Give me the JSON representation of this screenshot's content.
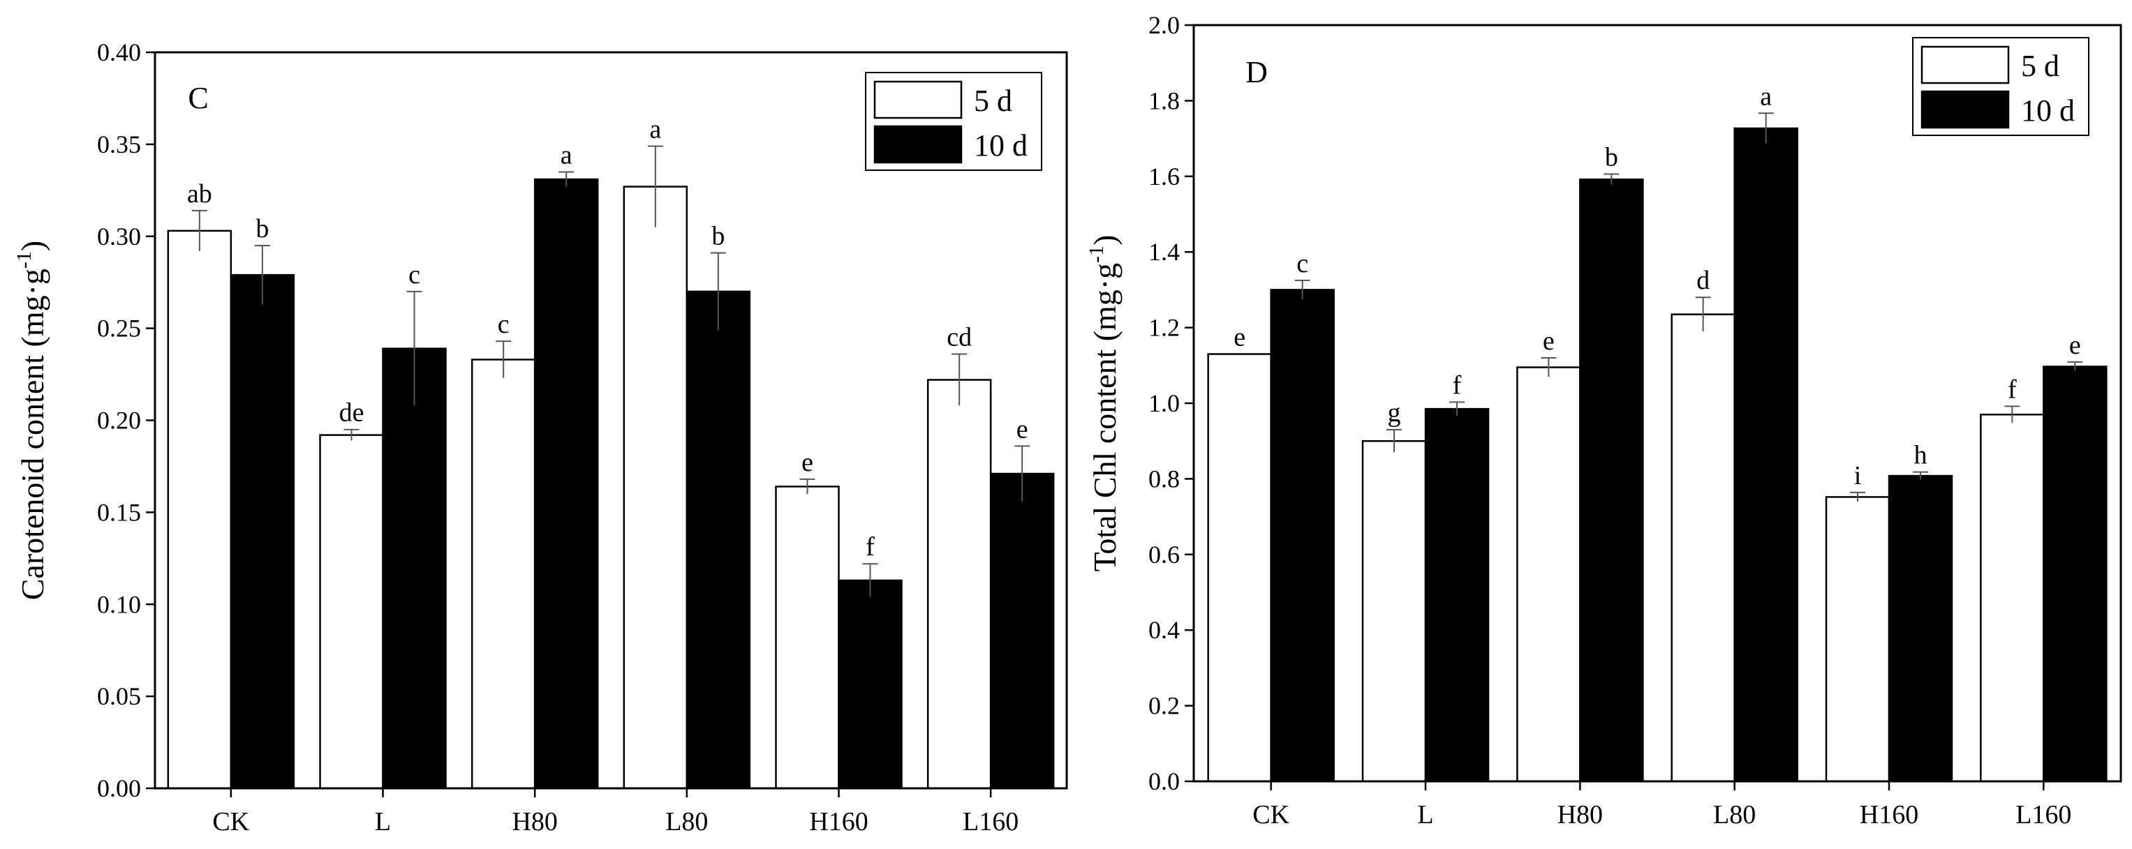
{
  "chart_data": [
    {
      "type": "bar",
      "panel_label": "C",
      "ylabel": "Carotenoid content (mg·g",
      "ylabel_sup": "-1",
      "ylabel_close": ")",
      "xlabel": "",
      "ylim": [
        0,
        0.4
      ],
      "ytick_step": 0.05,
      "ytick_labels": [
        "0.00",
        "0.05",
        "0.10",
        "0.15",
        "0.20",
        "0.25",
        "0.30",
        "0.35",
        "0.40"
      ],
      "categories": [
        "CK",
        "L",
        "H80",
        "L80",
        "H160",
        "L160"
      ],
      "legend_position": "top-right",
      "series": [
        {
          "name": "5 d",
          "fill": "#ffffff",
          "values": [
            0.303,
            0.192,
            0.233,
            0.327,
            0.164,
            0.222
          ],
          "errors": [
            0.011,
            0.003,
            0.01,
            0.022,
            0.004,
            0.014
          ],
          "labels": [
            "ab",
            "de",
            "c",
            "a",
            "e",
            "cd"
          ]
        },
        {
          "name": "10 d",
          "fill": "#000000",
          "values": [
            0.279,
            0.239,
            0.331,
            0.27,
            0.113,
            0.171
          ],
          "errors": [
            0.016,
            0.031,
            0.004,
            0.021,
            0.009,
            0.015
          ],
          "labels": [
            "b",
            "c",
            "a",
            "b",
            "f",
            "e"
          ]
        }
      ]
    },
    {
      "type": "bar",
      "panel_label": "D",
      "ylabel": "Total Chl content (mg·g",
      "ylabel_sup": "-1",
      "ylabel_close": ")",
      "xlabel": "",
      "ylim": [
        0,
        2.0
      ],
      "ytick_step": 0.2,
      "ytick_labels": [
        "0.0",
        "0.2",
        "0.4",
        "0.6",
        "0.8",
        "1.0",
        "1.2",
        "1.4",
        "1.6",
        "1.8",
        "2.0"
      ],
      "categories": [
        "CK",
        "L",
        "H80",
        "L80",
        "H160",
        "L160"
      ],
      "legend_position": "top-right",
      "series": [
        {
          "name": "5 d",
          "fill": "#ffffff",
          "values": [
            1.13,
            0.9,
            1.095,
            1.235,
            0.752,
            0.97
          ],
          "errors": [
            0.0,
            0.03,
            0.025,
            0.045,
            0.012,
            0.022
          ],
          "labels": [
            "e",
            "g",
            "e",
            "d",
            "i",
            "f"
          ]
        },
        {
          "name": "10 d",
          "fill": "#000000",
          "values": [
            1.3,
            0.985,
            1.592,
            1.727,
            0.808,
            1.097
          ],
          "errors": [
            0.025,
            0.018,
            0.014,
            0.04,
            0.01,
            0.012
          ],
          "labels": [
            "c",
            "f",
            "b",
            "a",
            "h",
            "e"
          ]
        }
      ]
    }
  ]
}
